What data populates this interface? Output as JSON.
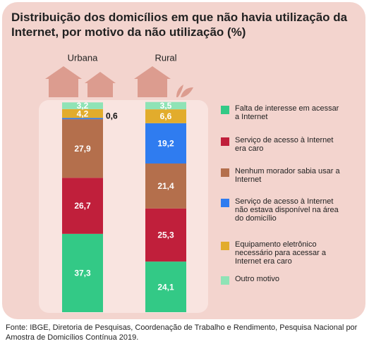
{
  "chart_data": {
    "type": "stacked_bar",
    "title": "Distribuição dos domicílios em que não havia utilização da Internet, por motivo da não utilização (%)",
    "categories": [
      "Urbana",
      "Rural"
    ],
    "series": [
      {
        "name": "Falta de interesse em acessar a Internet",
        "color": "#33c986",
        "values": [
          37.3,
          24.1
        ],
        "value_labels": [
          "37,3",
          "24,1"
        ]
      },
      {
        "name": "Serviço de acesso à Internet era caro",
        "color": "#c01f3b",
        "values": [
          26.7,
          25.3
        ],
        "value_labels": [
          "26,7",
          "25,3"
        ]
      },
      {
        "name": "Nenhum morador sabia usar a Internet",
        "color": "#b46f4c",
        "values": [
          27.9,
          21.4
        ],
        "value_labels": [
          "27,9",
          "21,4"
        ]
      },
      {
        "name": "Serviço de acesso à Internet não estava disponível na área do domicílio",
        "color": "#2f7cf0",
        "values": [
          0.6,
          19.2
        ],
        "value_labels": [
          "0,6",
          "19,2"
        ]
      },
      {
        "name": "Equipamento eletrônico necessário para acessar a Internet era caro",
        "color": "#e2ac2c",
        "values": [
          4.2,
          6.6
        ],
        "value_labels": [
          "4,2",
          "6,6"
        ]
      },
      {
        "name": "Outro motivo",
        "color": "#8fe3b6",
        "values": [
          3.2,
          3.5
        ],
        "value_labels": [
          "3,2",
          "3,5"
        ]
      }
    ],
    "source": "Fonte: IBGE, Diretoria de Pesquisas, Coordenação de Trabalho e Rendimento, Pesquisa Nacional por Amostra de Domicílios Contínua 2019."
  }
}
